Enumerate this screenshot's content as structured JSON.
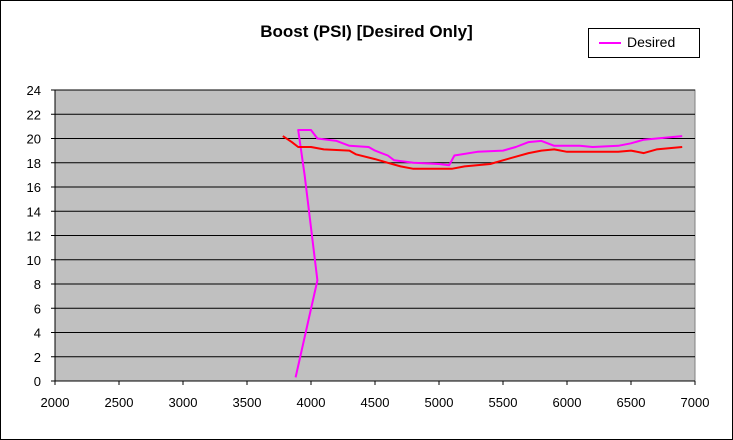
{
  "chart_data": {
    "type": "line",
    "title": "Boost (PSI) [Desired Only]",
    "xlabel": "",
    "ylabel": "",
    "xlim": [
      2000,
      7000
    ],
    "ylim": [
      0,
      24
    ],
    "xticks": [
      2000,
      2500,
      3000,
      3500,
      4000,
      4500,
      5000,
      5500,
      6000,
      6500,
      7000
    ],
    "yticks": [
      0,
      2,
      4,
      6,
      8,
      10,
      12,
      14,
      16,
      18,
      20,
      22,
      24
    ],
    "grid": "horizontal",
    "plot_background": "#c0c0c0",
    "legend_position": "top-right",
    "series": [
      {
        "name": "Desired",
        "color": "#ff00ff",
        "points": [
          [
            3880,
            0.3
          ],
          [
            4050,
            8.3
          ],
          [
            3950,
            17.0
          ],
          [
            3900,
            20.7
          ],
          [
            4000,
            20.7
          ],
          [
            4050,
            20.0
          ],
          [
            4200,
            19.8
          ],
          [
            4300,
            19.4
          ],
          [
            4450,
            19.3
          ],
          [
            4500,
            19.0
          ],
          [
            4600,
            18.6
          ],
          [
            4650,
            18.2
          ],
          [
            4800,
            18.0
          ],
          [
            5000,
            17.9
          ],
          [
            5080,
            17.8
          ],
          [
            5120,
            18.6
          ],
          [
            5300,
            18.9
          ],
          [
            5500,
            19.0
          ],
          [
            5600,
            19.3
          ],
          [
            5700,
            19.7
          ],
          [
            5800,
            19.8
          ],
          [
            5900,
            19.4
          ],
          [
            6100,
            19.4
          ],
          [
            6200,
            19.3
          ],
          [
            6400,
            19.4
          ],
          [
            6500,
            19.6
          ],
          [
            6600,
            19.9
          ],
          [
            6700,
            20.0
          ],
          [
            6900,
            20.2
          ]
        ]
      },
      {
        "name": "",
        "color": "#ff0000",
        "points": [
          [
            3780,
            20.2
          ],
          [
            3850,
            19.7
          ],
          [
            3900,
            19.3
          ],
          [
            4000,
            19.3
          ],
          [
            4100,
            19.1
          ],
          [
            4300,
            19.0
          ],
          [
            4350,
            18.7
          ],
          [
            4500,
            18.3
          ],
          [
            4600,
            18.0
          ],
          [
            4700,
            17.7
          ],
          [
            4800,
            17.5
          ],
          [
            5000,
            17.5
          ],
          [
            5100,
            17.5
          ],
          [
            5200,
            17.7
          ],
          [
            5400,
            17.9
          ],
          [
            5500,
            18.2
          ],
          [
            5600,
            18.5
          ],
          [
            5700,
            18.8
          ],
          [
            5800,
            19.0
          ],
          [
            5900,
            19.1
          ],
          [
            6000,
            18.9
          ],
          [
            6200,
            18.9
          ],
          [
            6400,
            18.9
          ],
          [
            6500,
            19.0
          ],
          [
            6600,
            18.8
          ],
          [
            6700,
            19.1
          ],
          [
            6900,
            19.3
          ]
        ]
      }
    ]
  }
}
